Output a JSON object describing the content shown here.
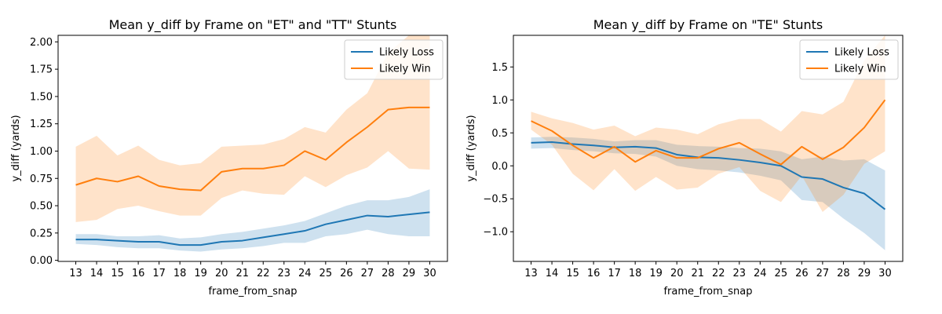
{
  "chart_data": [
    {
      "type": "line",
      "title": "Mean y_diff by Frame on \"ET\" and \"TT\" Stunts",
      "xlabel": "frame_from_snap",
      "ylabel": "y_diff (yards)",
      "x": [
        13,
        14,
        15,
        16,
        17,
        18,
        19,
        20,
        21,
        22,
        23,
        24,
        25,
        26,
        27,
        28,
        29,
        30
      ],
      "xlim": [
        12.15,
        30.85
      ],
      "ylim": [
        -0.01,
        2.06
      ],
      "yticks": [
        0.0,
        0.25,
        0.5,
        0.75,
        1.0,
        1.25,
        1.5,
        1.75,
        2.0
      ],
      "ytick_labels": [
        "0.00",
        "0.25",
        "0.50",
        "0.75",
        "1.00",
        "1.25",
        "1.50",
        "1.75",
        "2.00"
      ],
      "legend_position": "top-right",
      "series": [
        {
          "name": "Likely Loss",
          "color": "#1f77b4",
          "values": [
            0.19,
            0.19,
            0.18,
            0.17,
            0.17,
            0.14,
            0.14,
            0.17,
            0.18,
            0.21,
            0.24,
            0.27,
            0.33,
            0.37,
            0.41,
            0.4,
            0.42,
            0.44
          ],
          "lower": [
            0.15,
            0.14,
            0.12,
            0.11,
            0.11,
            0.09,
            0.08,
            0.1,
            0.11,
            0.13,
            0.16,
            0.16,
            0.22,
            0.24,
            0.28,
            0.24,
            0.22,
            0.22
          ],
          "upper": [
            0.24,
            0.24,
            0.22,
            0.22,
            0.23,
            0.2,
            0.21,
            0.24,
            0.26,
            0.29,
            0.32,
            0.36,
            0.43,
            0.5,
            0.55,
            0.55,
            0.58,
            0.65
          ]
        },
        {
          "name": "Likely Win",
          "color": "#ff7f0e",
          "values": [
            0.69,
            0.75,
            0.72,
            0.77,
            0.68,
            0.65,
            0.64,
            0.81,
            0.84,
            0.84,
            0.87,
            1.0,
            0.92,
            1.08,
            1.22,
            1.38,
            1.4,
            1.4
          ],
          "lower": [
            0.35,
            0.37,
            0.47,
            0.5,
            0.45,
            0.41,
            0.41,
            0.57,
            0.64,
            0.61,
            0.6,
            0.77,
            0.67,
            0.78,
            0.85,
            1.0,
            0.84,
            0.83
          ],
          "upper": [
            1.04,
            1.14,
            0.96,
            1.05,
            0.92,
            0.87,
            0.89,
            1.04,
            1.05,
            1.06,
            1.11,
            1.22,
            1.17,
            1.38,
            1.53,
            1.9,
            2.06,
            2.06
          ]
        }
      ]
    },
    {
      "type": "line",
      "title": "Mean y_diff by Frame on \"TE\" Stunts",
      "xlabel": "frame_from_snap",
      "ylabel": "y_diff (yards)",
      "x": [
        13,
        14,
        15,
        16,
        17,
        18,
        19,
        20,
        21,
        22,
        23,
        24,
        25,
        26,
        27,
        28,
        29,
        30
      ],
      "xlim": [
        12.15,
        30.85
      ],
      "ylim": [
        -1.45,
        1.98
      ],
      "yticks": [
        -1.0,
        -0.5,
        0.0,
        0.5,
        1.0,
        1.5
      ],
      "ytick_labels": [
        "−1.0",
        "−0.5",
        "0.0",
        "0.5",
        "1.0",
        "1.5"
      ],
      "legend_position": "top-right",
      "series": [
        {
          "name": "Likely Loss",
          "color": "#1f77b4",
          "values": [
            0.35,
            0.36,
            0.33,
            0.31,
            0.28,
            0.29,
            0.27,
            0.17,
            0.13,
            0.12,
            0.09,
            0.05,
            0.0,
            -0.17,
            -0.2,
            -0.33,
            -0.42,
            -0.66
          ],
          "lower": [
            0.26,
            0.27,
            0.24,
            0.22,
            0.19,
            0.18,
            0.14,
            0.0,
            -0.05,
            -0.07,
            -0.1,
            -0.15,
            -0.22,
            -0.52,
            -0.55,
            -0.8,
            -1.02,
            -1.28
          ],
          "upper": [
            0.43,
            0.44,
            0.43,
            0.41,
            0.37,
            0.39,
            0.39,
            0.32,
            0.3,
            0.29,
            0.27,
            0.26,
            0.22,
            0.1,
            0.14,
            0.08,
            0.1,
            -0.07
          ]
        },
        {
          "name": "Likely Win",
          "color": "#ff7f0e",
          "values": [
            0.68,
            0.53,
            0.31,
            0.12,
            0.29,
            0.06,
            0.23,
            0.12,
            0.12,
            0.26,
            0.35,
            0.18,
            0.02,
            0.29,
            0.1,
            0.28,
            0.58,
            1.0
          ],
          "lower": [
            0.55,
            0.32,
            -0.12,
            -0.37,
            -0.05,
            -0.38,
            -0.17,
            -0.36,
            -0.33,
            -0.12,
            -0.02,
            -0.38,
            -0.55,
            -0.15,
            -0.7,
            -0.44,
            0.03,
            0.22
          ],
          "upper": [
            0.82,
            0.72,
            0.65,
            0.55,
            0.61,
            0.45,
            0.58,
            0.55,
            0.48,
            0.63,
            0.71,
            0.71,
            0.52,
            0.83,
            0.78,
            0.97,
            1.6,
            1.98
          ]
        }
      ]
    }
  ]
}
